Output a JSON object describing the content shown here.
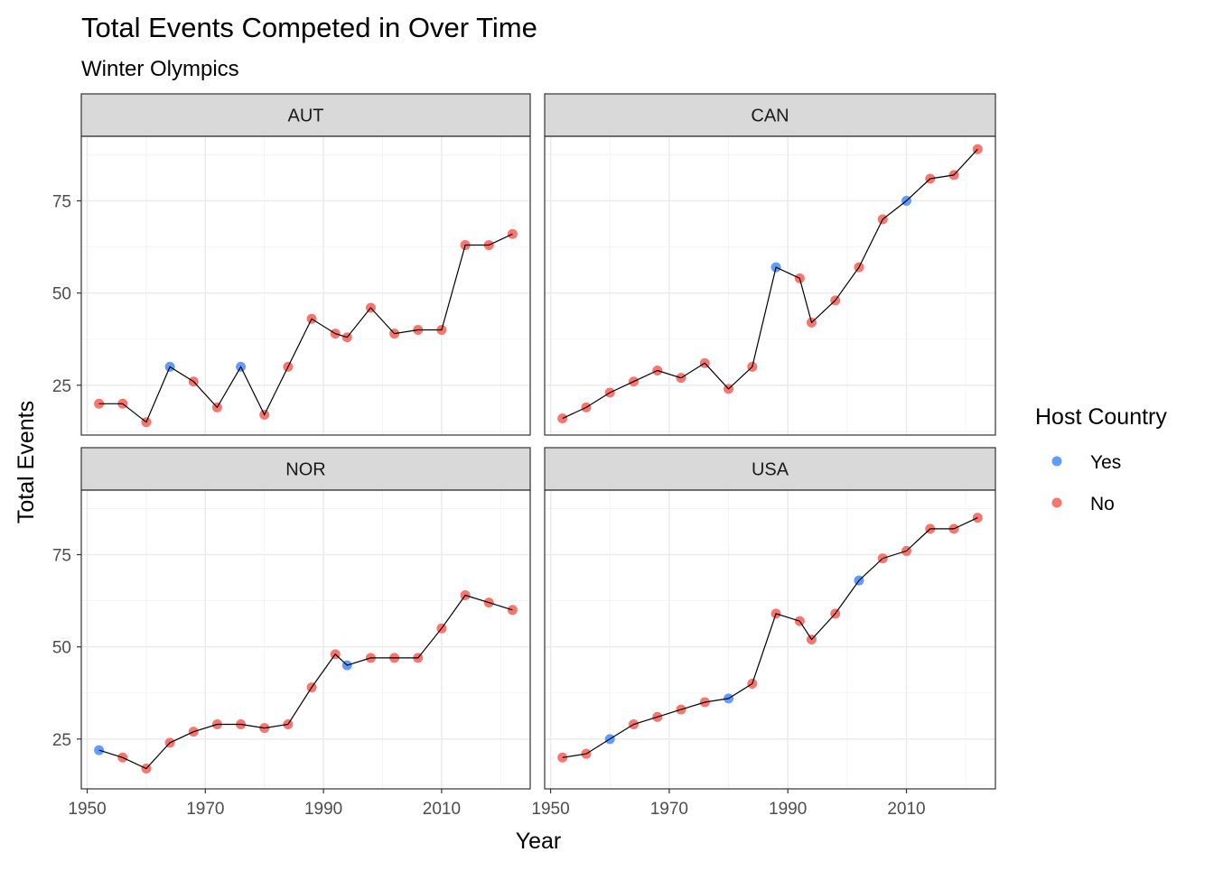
{
  "chart_data": {
    "type": "line",
    "title": "Total Events Competed in Over Time",
    "subtitle": "Winter Olympics",
    "xlabel": "Year",
    "ylabel": "Total Events",
    "xlim": [
      1949,
      2025
    ],
    "ylim": [
      11.5,
      92.5
    ],
    "x_ticks": [
      1950,
      1970,
      1990,
      2010
    ],
    "y_ticks": [
      25,
      50,
      75
    ],
    "grid": true,
    "legend": {
      "title": "Host Country",
      "position": "right",
      "items": [
        {
          "label": "Yes",
          "color": "#619CFF"
        },
        {
          "label": "No",
          "color": "#F8766D"
        }
      ]
    },
    "colors": {
      "host_yes": "#619CFF",
      "host_no": "#F8766D",
      "line": "#000000",
      "strip": "#D9D9D9"
    },
    "panels": [
      {
        "name": "AUT",
        "x": [
          1952,
          1956,
          1960,
          1964,
          1968,
          1972,
          1976,
          1980,
          1984,
          1988,
          1992,
          1994,
          1998,
          2002,
          2006,
          2010,
          2014,
          2018,
          2022
        ],
        "y": [
          20,
          20,
          15,
          30,
          26,
          19,
          30,
          17,
          30,
          43,
          39,
          38,
          46,
          39,
          40,
          40,
          63,
          63,
          66
        ],
        "host": [
          "No",
          "No",
          "No",
          "Yes",
          "No",
          "No",
          "Yes",
          "No",
          "No",
          "No",
          "No",
          "No",
          "No",
          "No",
          "No",
          "No",
          "No",
          "No",
          "No"
        ]
      },
      {
        "name": "CAN",
        "x": [
          1952,
          1956,
          1960,
          1964,
          1968,
          1972,
          1976,
          1980,
          1984,
          1988,
          1992,
          1994,
          1998,
          2002,
          2006,
          2010,
          2014,
          2018,
          2022
        ],
        "y": [
          16,
          19,
          23,
          26,
          29,
          27,
          31,
          24,
          30,
          57,
          54,
          42,
          48,
          57,
          70,
          75,
          81,
          82,
          89
        ],
        "host": [
          "No",
          "No",
          "No",
          "No",
          "No",
          "No",
          "No",
          "No",
          "No",
          "Yes",
          "No",
          "No",
          "No",
          "No",
          "No",
          "Yes",
          "No",
          "No",
          "No"
        ]
      },
      {
        "name": "NOR",
        "x": [
          1952,
          1956,
          1960,
          1964,
          1968,
          1972,
          1976,
          1980,
          1984,
          1988,
          1992,
          1994,
          1998,
          2002,
          2006,
          2010,
          2014,
          2018,
          2022
        ],
        "y": [
          22,
          20,
          17,
          24,
          27,
          29,
          29,
          28,
          29,
          39,
          48,
          45,
          47,
          47,
          47,
          55,
          64,
          62,
          60
        ],
        "host": [
          "Yes",
          "No",
          "No",
          "No",
          "No",
          "No",
          "No",
          "No",
          "No",
          "No",
          "No",
          "Yes",
          "No",
          "No",
          "No",
          "No",
          "No",
          "No",
          "No"
        ]
      },
      {
        "name": "USA",
        "x": [
          1952,
          1956,
          1960,
          1964,
          1968,
          1972,
          1976,
          1980,
          1984,
          1988,
          1992,
          1994,
          1998,
          2002,
          2006,
          2010,
          2014,
          2018,
          2022
        ],
        "y": [
          20,
          21,
          25,
          29,
          31,
          33,
          35,
          36,
          40,
          59,
          57,
          52,
          59,
          68,
          74,
          76,
          82,
          82,
          85
        ],
        "host": [
          "No",
          "No",
          "Yes",
          "No",
          "No",
          "No",
          "No",
          "Yes",
          "No",
          "No",
          "No",
          "No",
          "No",
          "Yes",
          "No",
          "No",
          "No",
          "No",
          "No"
        ]
      }
    ]
  }
}
